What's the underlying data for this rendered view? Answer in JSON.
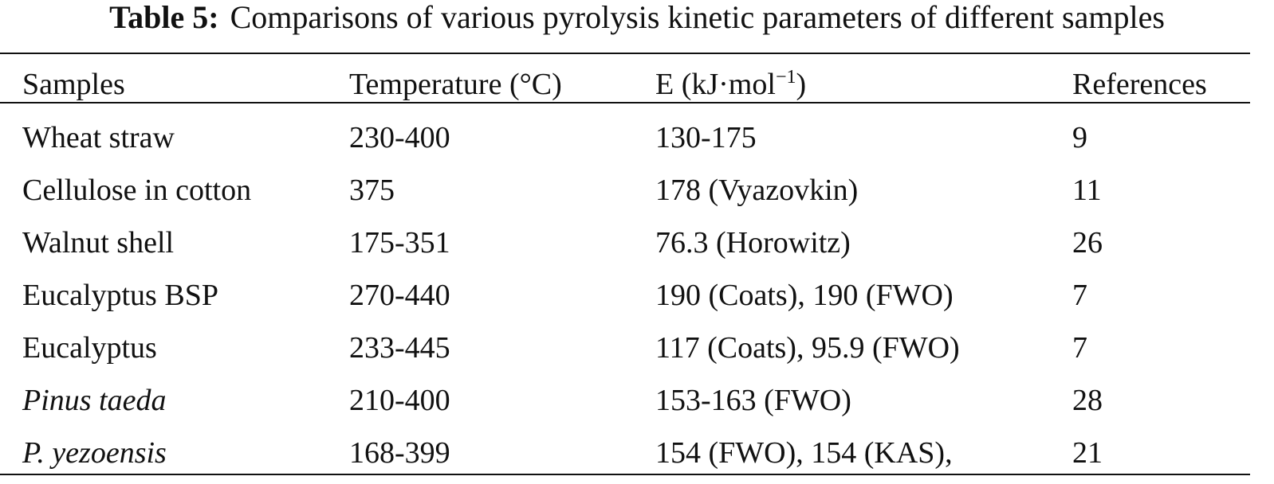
{
  "caption": {
    "label": "Table 5:",
    "text": "Comparisons of various pyrolysis kinetic parameters of different samples"
  },
  "headers": {
    "samples": "Samples",
    "temperature": "Temperature (°C)",
    "energy_prefix": "E (kJ·mol",
    "energy_sup": "−1",
    "energy_suffix": ")",
    "references": "References"
  },
  "rows": [
    {
      "sample": "Wheat straw",
      "temperature": "230-400",
      "energy": "130-175",
      "reference": "9"
    },
    {
      "sample": "Cellulose in cotton",
      "temperature": "375",
      "energy": "178 (Vyazovkin)",
      "reference": "11"
    },
    {
      "sample": "Walnut shell",
      "temperature": "175-351",
      "energy": "76.3 (Horowitz)",
      "reference": "26"
    },
    {
      "sample": "Eucalyptus BSP",
      "temperature": "270-440",
      "energy": "190 (Coats), 190 (FWO)",
      "reference": "7"
    },
    {
      "sample": "Eucalyptus",
      "temperature": "233-445",
      "energy": "117 (Coats), 95.9 (FWO)",
      "reference": "7"
    },
    {
      "sample": "Pinus taeda",
      "temperature": "210-400",
      "energy": "153-163 (FWO)",
      "reference": "28"
    },
    {
      "sample": "P. yezoensis",
      "temperature": "168-399",
      "energy": "154 (FWO), 154 (KAS),",
      "reference": "21"
    }
  ]
}
